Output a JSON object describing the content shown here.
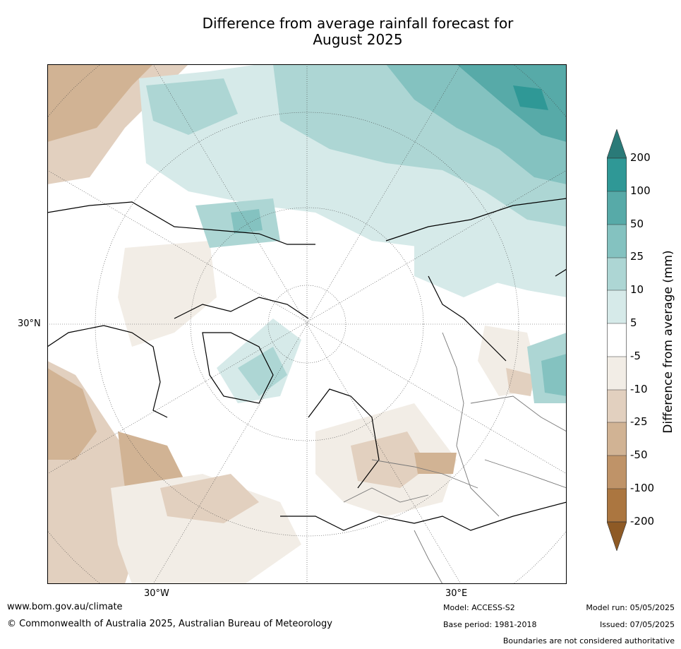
{
  "title": {
    "line1": "Difference from average rainfall forecast for",
    "line2": "August 2025"
  },
  "map": {
    "projection": "north-polar-stereographic",
    "grid_labels": {
      "lat_left": "30°N",
      "lon_bottom_left": "30°W",
      "lon_bottom_right": "30°E"
    }
  },
  "colorbar": {
    "title": "Difference from average (mm)",
    "ticks": [
      "200",
      "100",
      "50",
      "25",
      "10",
      "5",
      "-5",
      "-10",
      "-25",
      "-50",
      "-100",
      "-200"
    ],
    "colors": {
      "over": "#2a7a78",
      "b200": "#2f9896",
      "b100": "#57aaa8",
      "b50": "#84c2c0",
      "b25": "#add6d4",
      "b10": "#d6eae9",
      "neutral": "#ffffff",
      "n10": "#f2ede6",
      "n25": "#e2d0bf",
      "n50": "#d1b394",
      "n100": "#bf9368",
      "n200": "#ab7640",
      "under": "#8e5a25"
    }
  },
  "footer": {
    "url": "www.bom.gov.au/climate",
    "copyright": "© Commonwealth of Australia 2025, Australian Bureau of Meteorology",
    "model": "Model: ACCESS-S2",
    "base_period": "Base period: 1981-2018",
    "model_run": "Model run: 05/05/2025",
    "issued": "Issued: 07/05/2025",
    "disclaimer": "Boundaries are not considered authoritative"
  }
}
